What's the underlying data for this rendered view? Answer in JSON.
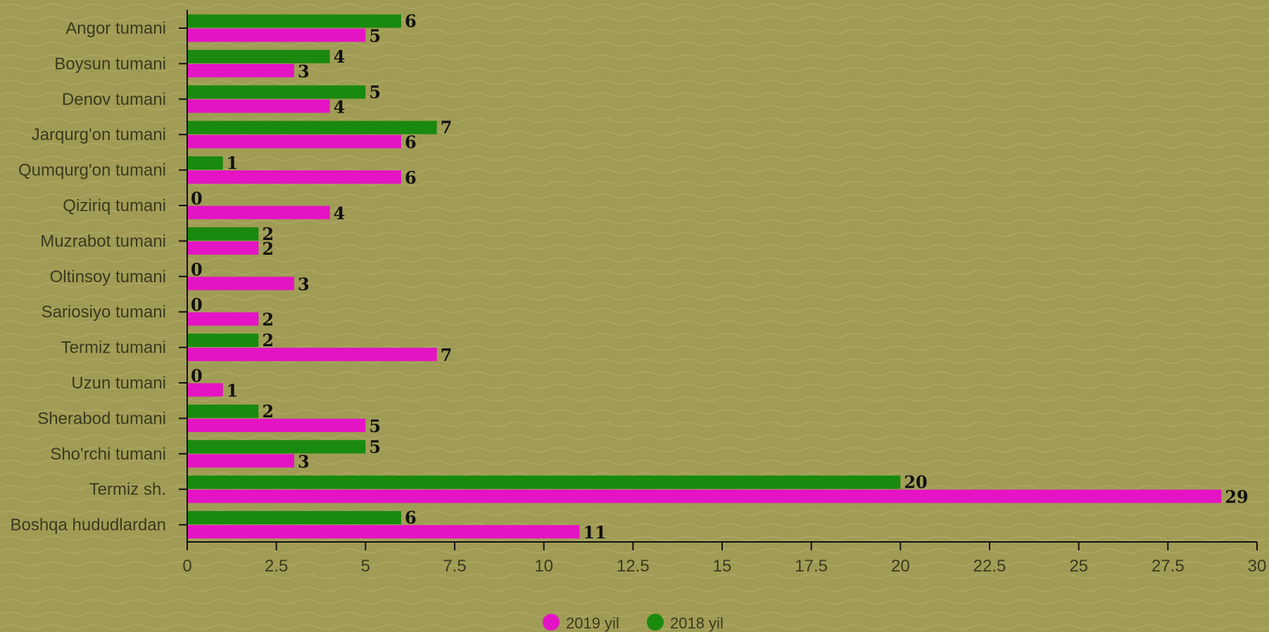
{
  "chart_data": {
    "type": "bar",
    "orientation": "horizontal",
    "categories": [
      "Angor tumani",
      "Boysun tumani",
      "Denov tumani",
      "Jarqurg'on tumani",
      "Qumqurg'on tumani",
      "Qiziriq tumani",
      "Muzrabot tumani",
      "Oltinsoy tumani",
      "Sariosiyo tumani",
      "Termiz tumani",
      "Uzun tumani",
      "Sherabod tumani",
      "Sho'rchi tumani",
      "Termiz sh.",
      "Boshqa hududlardan"
    ],
    "series": [
      {
        "name": "2018 yil",
        "color": "#1a8a0f",
        "values": [
          6,
          4,
          5,
          7,
          1,
          0,
          2,
          0,
          0,
          2,
          0,
          2,
          5,
          20,
          6
        ]
      },
      {
        "name": "2019 yil",
        "color": "#e414c4",
        "values": [
          5,
          3,
          4,
          6,
          6,
          4,
          2,
          3,
          2,
          7,
          1,
          5,
          3,
          29,
          11
        ]
      }
    ],
    "xlim": [
      0,
      30
    ],
    "x_ticks": [
      "0",
      "2.5",
      "5",
      "7.5",
      "10",
      "12.5",
      "15",
      "17.5",
      "20",
      "22.5",
      "25",
      "27.5",
      "30"
    ],
    "title": "",
    "xlabel": "",
    "ylabel": "",
    "grid": false,
    "legend": {
      "position": "bottom-center",
      "items": [
        "2019 yil",
        "2018 yil"
      ]
    },
    "background_color": "#a09c55"
  }
}
